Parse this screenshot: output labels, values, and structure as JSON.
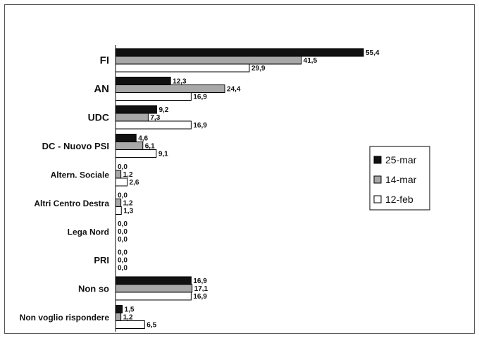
{
  "chart_data": {
    "type": "bar",
    "orientation": "horizontal",
    "categories": [
      "FI",
      "AN",
      "UDC",
      "DC - Nuovo PSI",
      "Altern. Sociale",
      "Altri Centro Destra",
      "Lega Nord",
      "PRI",
      "Non so",
      "Non voglio rispondere"
    ],
    "series": [
      {
        "name": "25-mar",
        "color": "#111111",
        "values": [
          55.4,
          12.3,
          9.2,
          4.6,
          0.0,
          0.0,
          0.0,
          0.0,
          16.9,
          1.5
        ],
        "labels": [
          "55,4",
          "12,3",
          "9,2",
          "4,6",
          "0,0",
          "0,0",
          "0,0",
          "0,0",
          "16,9",
          "1,5"
        ]
      },
      {
        "name": "14-mar",
        "color": "#a8a8a8",
        "values": [
          41.5,
          24.4,
          7.3,
          6.1,
          1.2,
          1.2,
          0.0,
          0.0,
          17.1,
          1.2
        ],
        "labels": [
          "41,5",
          "24,4",
          "7,3",
          "6,1",
          "1,2",
          "1,2",
          "0,0",
          "0,0",
          "17,1",
          "1,2"
        ]
      },
      {
        "name": "12-feb",
        "color": "#ffffff",
        "values": [
          29.9,
          16.9,
          16.9,
          9.1,
          2.6,
          1.3,
          0.0,
          0.0,
          16.9,
          6.5
        ],
        "labels": [
          "29,9",
          "16,9",
          "16,9",
          "9,1",
          "2,6",
          "1,3",
          "0,0",
          "0,0",
          "16,9",
          "6,5"
        ]
      }
    ],
    "xlim": [
      0,
      60
    ],
    "grid": false,
    "legend_position": "right"
  }
}
